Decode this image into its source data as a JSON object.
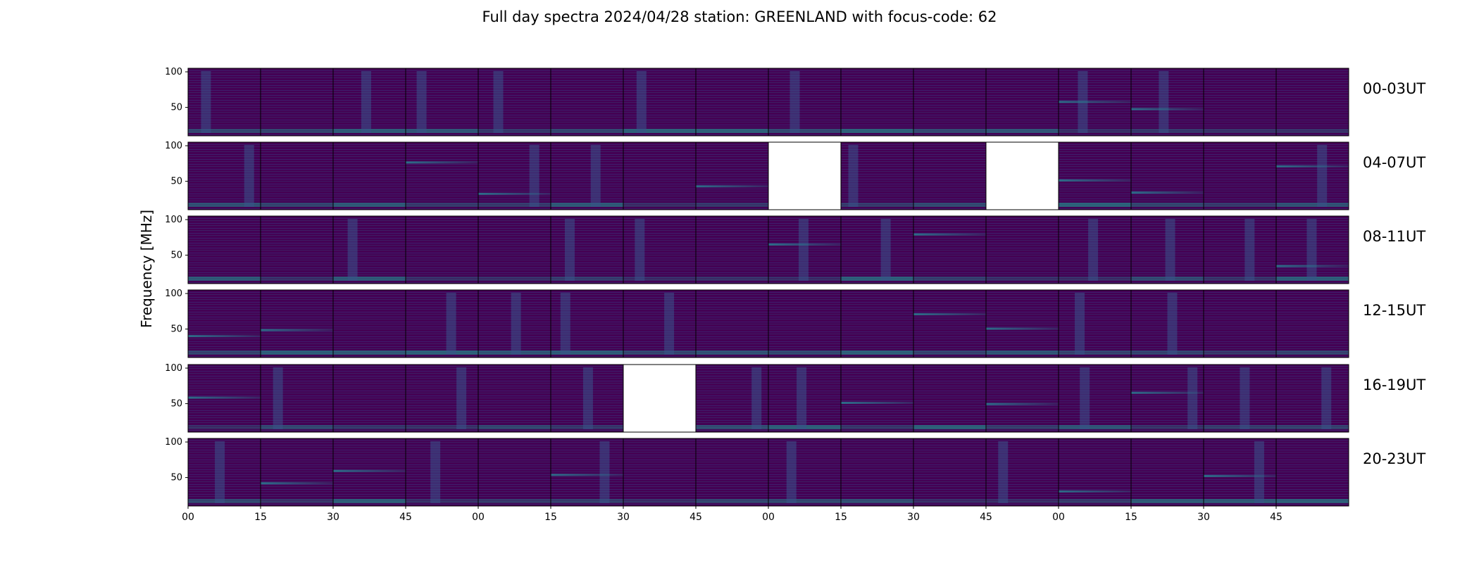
{
  "figure": {
    "title": "Full day spectra 2024/04/28 station: GREENLAND with focus-code: 62",
    "ylabel": "Frequency [MHz]"
  },
  "chart_data": {
    "type": "heatmap",
    "colormap": "viridis",
    "colors": {
      "low": "#440154",
      "mid": "#3b528b",
      "teal": "#21918c",
      "high": "#5ec962",
      "missing": "#ffffff"
    },
    "rows": [
      "00-03UT",
      "04-07UT",
      "08-11UT",
      "12-15UT",
      "16-19UT",
      "20-23UT"
    ],
    "panels_per_row": 16,
    "panel_minutes": 15,
    "yticks": [
      "100",
      "50"
    ],
    "ylim": [
      10,
      105
    ],
    "xticks": [
      "00",
      "15",
      "30",
      "45",
      "00",
      "15",
      "30",
      "45",
      "00",
      "15",
      "30",
      "45",
      "00",
      "15",
      "30",
      "45"
    ],
    "missing_panels": [
      [
        1,
        8
      ],
      [
        1,
        11
      ],
      [
        4,
        6
      ]
    ]
  }
}
